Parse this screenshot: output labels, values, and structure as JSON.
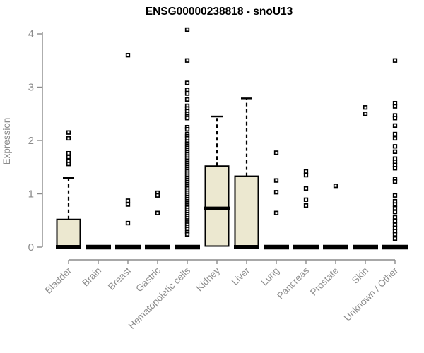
{
  "colors": {
    "box_fill": "#ECE8D0",
    "box_stroke": "#000000",
    "median": "#000000",
    "whisker": "#000000",
    "outlier_stroke": "#000000",
    "axis_line": "#8c8c8c",
    "axis_text": "#8c8c8c",
    "title_text": "#000000",
    "background": "#ffffff"
  },
  "chart_data": {
    "type": "boxplot",
    "title": "ENSG00000238818 - snoU13",
    "xlabel": "",
    "ylabel": "Expression",
    "ylim": [
      0,
      4
    ],
    "yticks": [
      0,
      1,
      2,
      3,
      4
    ],
    "grid": false,
    "legend": "none",
    "categories": [
      "Bladder",
      "Brain",
      "Breast",
      "Gastric",
      "Hematopoietic cells",
      "Kidney",
      "Liver",
      "Lung",
      "Pancreas",
      "Prostate",
      "Skin",
      "Unknown / Other"
    ],
    "series": [
      {
        "name": "Bladder",
        "q1": 0,
        "median": 0,
        "q3": 0.52,
        "whisker_low": 0,
        "whisker_high": 1.3,
        "outliers": [
          2.15,
          2.04,
          1.76,
          1.69,
          1.62,
          1.56
        ]
      },
      {
        "name": "Brain",
        "q1": 0,
        "median": 0,
        "q3": 0,
        "whisker_low": 0,
        "whisker_high": 0,
        "outliers": []
      },
      {
        "name": "Breast",
        "q1": 0,
        "median": 0,
        "q3": 0,
        "whisker_low": 0,
        "whisker_high": 0,
        "outliers": [
          3.6,
          0.87,
          0.8,
          0.45
        ]
      },
      {
        "name": "Gastric",
        "q1": 0,
        "median": 0,
        "q3": 0,
        "whisker_low": 0,
        "whisker_high": 0,
        "outliers": [
          1.02,
          0.97,
          0.64
        ]
      },
      {
        "name": "Hematopoietic cells",
        "q1": 0,
        "median": 0,
        "q3": 0,
        "whisker_low": 0,
        "whisker_high": 0,
        "outliers": [
          4.08,
          3.5,
          3.08,
          2.95,
          2.88,
          2.77,
          2.65,
          2.6,
          2.55,
          2.5,
          2.45,
          2.42,
          2.25,
          2.21,
          2.12,
          2.08,
          2.04,
          1.98,
          1.94,
          1.9,
          1.86,
          1.82,
          1.78,
          1.74,
          1.7,
          1.66,
          1.62,
          1.58,
          1.54,
          1.5,
          1.46,
          1.42,
          1.38,
          1.34,
          1.3,
          1.26,
          1.22,
          1.18,
          1.14,
          1.1,
          1.06,
          1.02,
          0.98,
          0.94,
          0.9,
          0.86,
          0.82,
          0.78,
          0.74,
          0.7,
          0.66,
          0.62,
          0.58,
          0.54,
          0.5,
          0.46,
          0.42,
          0.38,
          0.34,
          0.28,
          0.24
        ]
      },
      {
        "name": "Kidney",
        "q1": 0.02,
        "median": 0.73,
        "q3": 1.52,
        "whisker_low": 0.02,
        "whisker_high": 2.45,
        "outliers": []
      },
      {
        "name": "Liver",
        "q1": 0,
        "median": 0,
        "q3": 1.33,
        "whisker_low": 0,
        "whisker_high": 2.79,
        "outliers": []
      },
      {
        "name": "Lung",
        "q1": 0,
        "median": 0,
        "q3": 0,
        "whisker_low": 0,
        "whisker_high": 0,
        "outliers": [
          1.77,
          1.25,
          1.03,
          0.64
        ]
      },
      {
        "name": "Pancreas",
        "q1": 0,
        "median": 0,
        "q3": 0,
        "whisker_low": 0,
        "whisker_high": 0,
        "outliers": [
          1.42,
          1.35,
          1.1,
          0.89,
          0.78
        ]
      },
      {
        "name": "Prostate",
        "q1": 0,
        "median": 0,
        "q3": 0,
        "whisker_low": 0,
        "whisker_high": 0,
        "outliers": [
          1.15
        ]
      },
      {
        "name": "Skin",
        "q1": 0,
        "median": 0,
        "q3": 0,
        "whisker_low": 0,
        "whisker_high": 0,
        "outliers": [
          2.62,
          2.5
        ]
      },
      {
        "name": "Unknown / Other",
        "q1": 0,
        "median": 0,
        "q3": 0,
        "whisker_low": 0,
        "whisker_high": 0,
        "outliers": [
          3.5,
          2.7,
          2.64,
          2.47,
          2.42,
          2.28,
          2.12,
          2.04,
          1.89,
          1.79,
          1.66,
          1.6,
          1.54,
          1.48,
          1.28,
          1.23,
          0.97,
          0.86,
          0.8,
          0.73,
          0.66,
          0.56,
          0.49,
          0.42,
          0.36,
          0.3,
          0.24,
          0.16
        ]
      }
    ]
  }
}
